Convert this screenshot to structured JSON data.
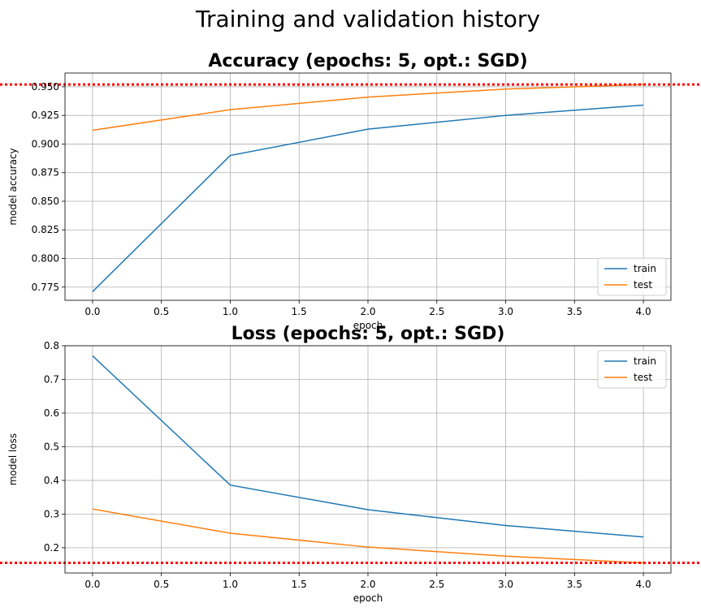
{
  "suptitle": "Training and validation history",
  "colors": {
    "train": "#1f77b4",
    "test": "#ff7f0e",
    "reference": "#ff0000",
    "grid": "#b0b0b0"
  },
  "chart_data": [
    {
      "type": "line",
      "title": "Accuracy (epochs: 5, opt.: SGD)",
      "xlabel": "epoch",
      "ylabel": "model accuracy",
      "xlim": [
        -0.2,
        4.2
      ],
      "ylim": [
        0.7635,
        0.962
      ],
      "xticks": [
        0.0,
        0.5,
        1.0,
        1.5,
        2.0,
        2.5,
        3.0,
        3.5,
        4.0
      ],
      "xtick_labels": [
        "0.0",
        "0.5",
        "1.0",
        "1.5",
        "2.0",
        "2.5",
        "3.0",
        "3.5",
        "4.0"
      ],
      "yticks": [
        0.775,
        0.8,
        0.825,
        0.85,
        0.875,
        0.9,
        0.925,
        0.95
      ],
      "ytick_labels": [
        "0.775",
        "0.800",
        "0.825",
        "0.850",
        "0.875",
        "0.900",
        "0.925",
        "0.950"
      ],
      "grid": true,
      "legend": "lower-right",
      "x": [
        0,
        1,
        2,
        3,
        4
      ],
      "series": [
        {
          "name": "train",
          "values": [
            0.771,
            0.89,
            0.913,
            0.925,
            0.934
          ]
        },
        {
          "name": "test",
          "values": [
            0.912,
            0.93,
            0.941,
            0.948,
            0.952
          ]
        }
      ],
      "reference_line": 0.952
    },
    {
      "type": "line",
      "title": "Loss (epochs: 5, opt.: SGD)",
      "xlabel": "epoch",
      "ylabel": "model loss",
      "xlim": [
        -0.2,
        4.2
      ],
      "ylim": [
        0.125,
        0.8
      ],
      "xticks": [
        0.0,
        0.5,
        1.0,
        1.5,
        2.0,
        2.5,
        3.0,
        3.5,
        4.0
      ],
      "xtick_labels": [
        "0.0",
        "0.5",
        "1.0",
        "1.5",
        "2.0",
        "2.5",
        "3.0",
        "3.5",
        "4.0"
      ],
      "yticks": [
        0.2,
        0.3,
        0.4,
        0.5,
        0.6,
        0.7,
        0.8
      ],
      "ytick_labels": [
        "0.2",
        "0.3",
        "0.4",
        "0.5",
        "0.6",
        "0.7",
        "0.8"
      ],
      "grid": true,
      "legend": "upper-right",
      "x": [
        0,
        1,
        2,
        3,
        4
      ],
      "series": [
        {
          "name": "train",
          "values": [
            0.77,
            0.386,
            0.313,
            0.266,
            0.232
          ]
        },
        {
          "name": "test",
          "values": [
            0.315,
            0.243,
            0.202,
            0.175,
            0.155
          ]
        }
      ],
      "reference_line": 0.155
    }
  ]
}
